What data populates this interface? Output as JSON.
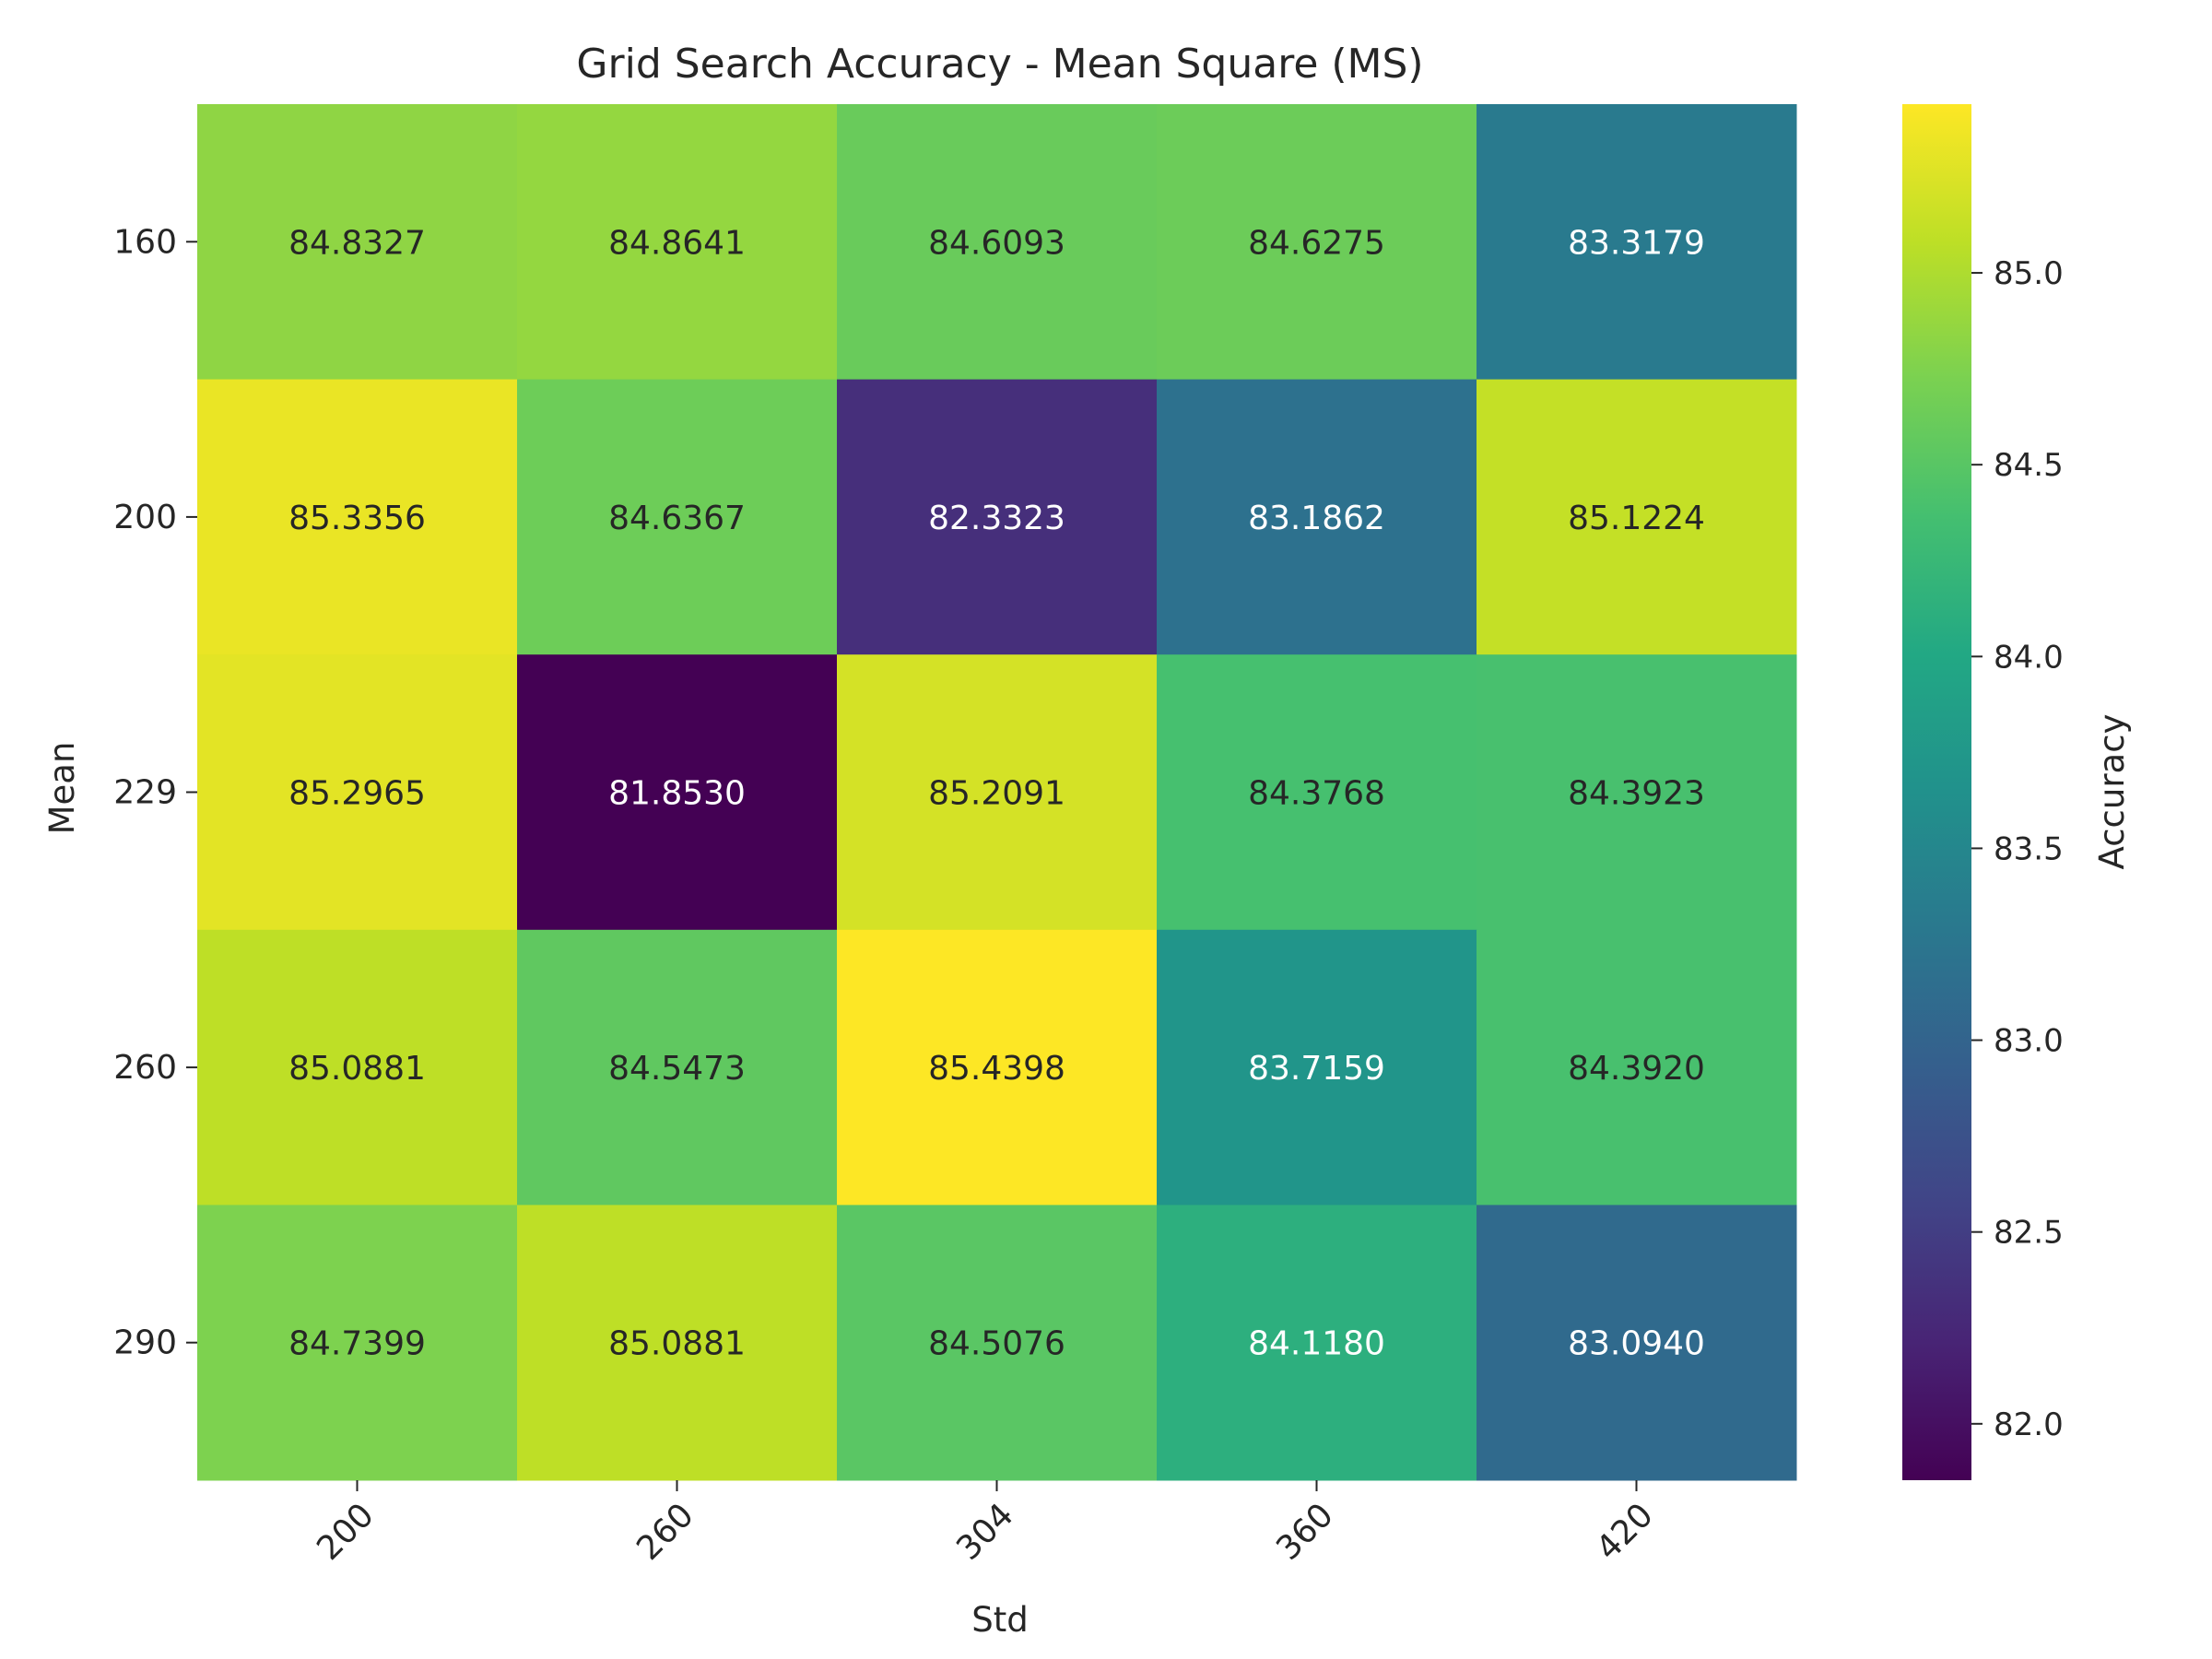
{
  "chart_data": {
    "type": "heatmap",
    "title": "Grid Search Accuracy - Mean Square (MS)",
    "xlabel": "Std",
    "ylabel": "Mean",
    "x_categories": [
      "200",
      "260",
      "304",
      "360",
      "420"
    ],
    "y_categories": [
      "160",
      "200",
      "229",
      "260",
      "290"
    ],
    "values": [
      [
        84.8327,
        84.8641,
        84.6093,
        84.6275,
        83.3179
      ],
      [
        85.3356,
        84.6367,
        82.3323,
        83.1862,
        85.1224
      ],
      [
        85.2965,
        81.853,
        85.2091,
        84.3768,
        84.3923
      ],
      [
        85.0881,
        84.5473,
        85.4398,
        83.7159,
        84.392
      ],
      [
        84.7399,
        85.0881,
        84.5076,
        84.118,
        83.094
      ]
    ],
    "colorbar": {
      "label": "Accuracy",
      "colormap": "viridis",
      "range": [
        81.853,
        85.4398
      ],
      "ticks": [
        82.0,
        82.5,
        83.0,
        83.5,
        84.0,
        84.5,
        85.0
      ],
      "tick_labels": [
        "82.0",
        "82.5",
        "83.0",
        "83.5",
        "84.0",
        "84.5",
        "85.0"
      ]
    },
    "annotation_format": "4 decimals",
    "grid": false
  }
}
